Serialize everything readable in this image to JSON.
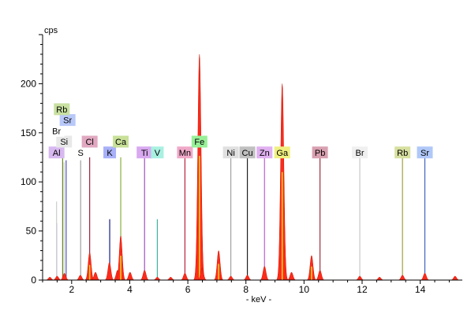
{
  "chart_data": {
    "type": "area",
    "xlabel": "- keV -",
    "ylabel": "cps",
    "xlim": [
      1.0,
      15.45
    ],
    "ylim": [
      0,
      250
    ],
    "x_ticks": [
      2,
      4,
      6,
      8,
      10,
      12,
      14
    ],
    "y_ticks": [
      0,
      50,
      100,
      150,
      200
    ],
    "grid": false,
    "series": [
      {
        "color": "#ff2a1a",
        "peaks": [
          {
            "x": 1.25,
            "y": 3
          },
          {
            "x": 1.5,
            "y": 4
          },
          {
            "x": 1.75,
            "y": 7
          },
          {
            "x": 2.3,
            "y": 5
          },
          {
            "x": 2.62,
            "y": 28
          },
          {
            "x": 2.82,
            "y": 8
          },
          {
            "x": 3.3,
            "y": 18
          },
          {
            "x": 3.58,
            "y": 10
          },
          {
            "x": 3.69,
            "y": 45
          },
          {
            "x": 4.01,
            "y": 8
          },
          {
            "x": 4.51,
            "y": 10
          },
          {
            "x": 4.95,
            "y": 3
          },
          {
            "x": 5.41,
            "y": 3
          },
          {
            "x": 5.9,
            "y": 7
          },
          {
            "x": 6.4,
            "y": 230
          },
          {
            "x": 6.49,
            "y": 12
          },
          {
            "x": 7.06,
            "y": 30
          },
          {
            "x": 7.48,
            "y": 4
          },
          {
            "x": 8.05,
            "y": 5
          },
          {
            "x": 8.64,
            "y": 14
          },
          {
            "x": 9.25,
            "y": 200
          },
          {
            "x": 9.57,
            "y": 8
          },
          {
            "x": 10.26,
            "y": 25
          },
          {
            "x": 10.55,
            "y": 10
          },
          {
            "x": 11.92,
            "y": 4
          },
          {
            "x": 12.6,
            "y": 3
          },
          {
            "x": 13.39,
            "y": 5
          },
          {
            "x": 14.16,
            "y": 7
          },
          {
            "x": 15.2,
            "y": 4
          }
        ]
      }
    ],
    "lines": [
      {
        "el": "Al",
        "x": 1.49,
        "y": 58,
        "color": "#c8c8e0"
      },
      {
        "el": "Si",
        "x": 1.74,
        "y": 120,
        "color": "#cccccc"
      },
      {
        "el": "Rb",
        "x": 1.69,
        "y": 125,
        "color": "#6b8e23"
      },
      {
        "el": "Sr",
        "x": 1.81,
        "y": 122,
        "color": "#4a56b8"
      },
      {
        "el": "Br",
        "x": 1.48,
        "y": 80,
        "color": "#cccccc"
      },
      {
        "el": "S",
        "x": 2.31,
        "y": 122,
        "color": "#a0a0a0"
      },
      {
        "el": "Cl",
        "x": 2.62,
        "y": 125,
        "color": "#a02040"
      },
      {
        "el": "K",
        "x": 3.31,
        "y": 62,
        "color": "#1a1a8a"
      },
      {
        "el": "Ca",
        "x": 3.69,
        "y": 125,
        "color": "#8ab040"
      },
      {
        "el": "Ti",
        "x": 4.51,
        "y": 125,
        "color": "#a050c0"
      },
      {
        "el": "V",
        "x": 4.95,
        "y": 62,
        "color": "#40b0a0"
      },
      {
        "el": "Mn",
        "x": 5.9,
        "y": 125,
        "color": "#c02040"
      },
      {
        "el": "Fe",
        "x": 6.4,
        "y": 125,
        "color": "#20a020"
      },
      {
        "el": "Ni",
        "x": 7.48,
        "y": 125,
        "color": "#a0a0a0"
      },
      {
        "el": "Cu",
        "x": 8.05,
        "y": 125,
        "color": "#202020"
      },
      {
        "el": "Zn",
        "x": 8.64,
        "y": 125,
        "color": "#c060d0"
      },
      {
        "el": "Ga",
        "x": 9.25,
        "y": 125,
        "color": "#e0c020"
      },
      {
        "el": "Pb",
        "x": 10.55,
        "y": 125,
        "color": "#a03040"
      },
      {
        "el": "Br",
        "x": 11.92,
        "y": 125,
        "color": "#c8c8c8"
      },
      {
        "el": "Rb",
        "x": 13.39,
        "y": 125,
        "color": "#a0a040"
      },
      {
        "el": "Sr",
        "x": 14.16,
        "y": 125,
        "color": "#4060c0"
      }
    ],
    "labels": [
      {
        "text": "Al",
        "x": 1.48,
        "y": 130,
        "bg": "#d8b8f0"
      },
      {
        "text": "Si",
        "x": 1.74,
        "y": 141,
        "bg": "#e8e8e8"
      },
      {
        "text": "Br",
        "x": 1.48,
        "y": 152,
        "bg": "#ffffff"
      },
      {
        "text": "Sr",
        "x": 1.86,
        "y": 163,
        "bg": "#b8c8f8"
      },
      {
        "text": "Rb",
        "x": 1.66,
        "y": 174,
        "bg": "#c8e0a0"
      },
      {
        "text": "S",
        "x": 2.31,
        "y": 130,
        "bg": "#ffffff"
      },
      {
        "text": "Cl",
        "x": 2.62,
        "y": 141,
        "bg": "#e0a8c0"
      },
      {
        "text": "K",
        "x": 3.31,
        "y": 130,
        "bg": "#a8b0f8"
      },
      {
        "text": "Ca",
        "x": 3.69,
        "y": 141,
        "bg": "#c8e098"
      },
      {
        "text": "Ti",
        "x": 4.51,
        "y": 130,
        "bg": "#d8a8f0"
      },
      {
        "text": "V",
        "x": 4.95,
        "y": 130,
        "bg": "#a8f0e0"
      },
      {
        "text": "Mn",
        "x": 5.9,
        "y": 130,
        "bg": "#f0a8c8"
      },
      {
        "text": "Fe",
        "x": 6.4,
        "y": 141,
        "bg": "#98f098"
      },
      {
        "text": "Ni",
        "x": 7.48,
        "y": 130,
        "bg": "#e0e0e0"
      },
      {
        "text": "Cu",
        "x": 8.05,
        "y": 130,
        "bg": "#c0c0c0"
      },
      {
        "text": "Zn",
        "x": 8.64,
        "y": 130,
        "bg": "#e0b0f0"
      },
      {
        "text": "Ga",
        "x": 9.25,
        "y": 130,
        "bg": "#f0f080"
      },
      {
        "text": "Pb",
        "x": 10.55,
        "y": 130,
        "bg": "#d8a0b0"
      },
      {
        "text": "Br",
        "x": 11.92,
        "y": 130,
        "bg": "#f0f0f0"
      },
      {
        "text": "Rb",
        "x": 13.39,
        "y": 130,
        "bg": "#d8e0a0"
      },
      {
        "text": "Sr",
        "x": 14.16,
        "y": 130,
        "bg": "#b0c8f8"
      }
    ]
  }
}
